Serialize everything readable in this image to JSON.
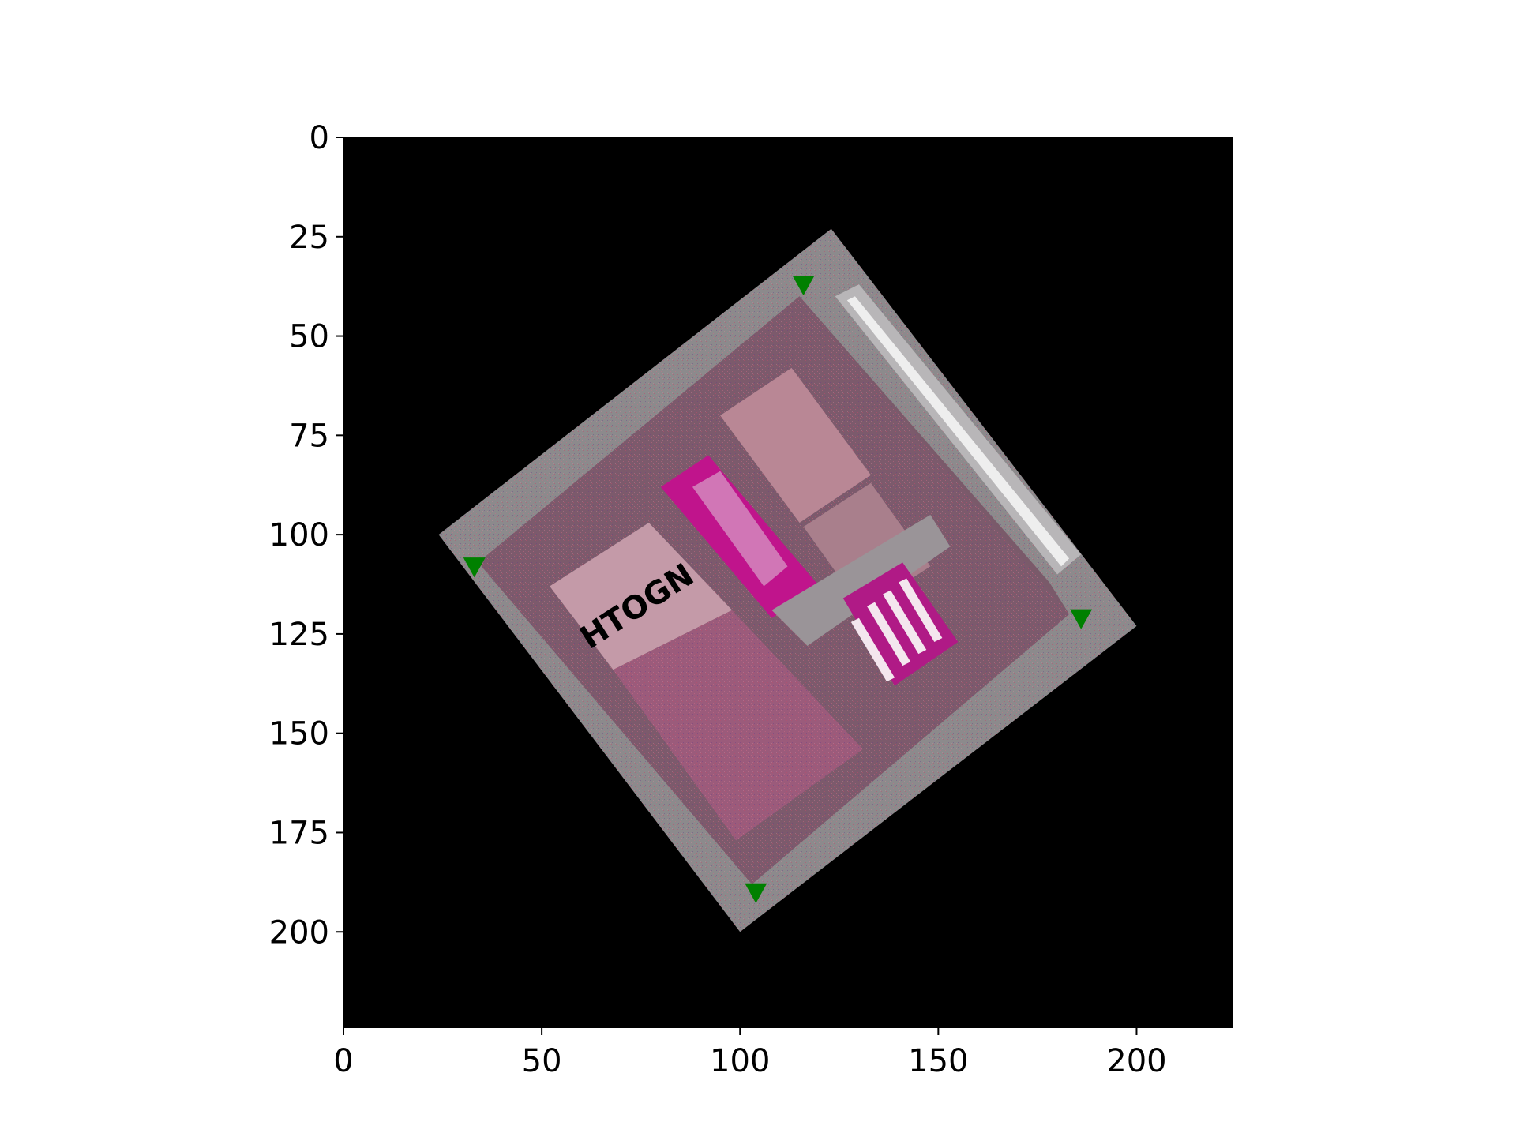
{
  "chart_data": {
    "type": "scatter",
    "title": "",
    "xlabel": "",
    "ylabel": "",
    "xlim": [
      0,
      224
    ],
    "ylim": [
      224,
      0
    ],
    "y_inverted": true,
    "grid": false,
    "legend": null,
    "x_ticks": [
      "0",
      "50",
      "100",
      "150",
      "200"
    ],
    "y_ticks": [
      "0",
      "25",
      "50",
      "75",
      "100",
      "125",
      "150",
      "175",
      "200"
    ],
    "x_tick_values": [
      0,
      50,
      100,
      150,
      200
    ],
    "y_tick_values": [
      0,
      25,
      50,
      75,
      100,
      125,
      150,
      175,
      200
    ],
    "background_image": {
      "description": "rotated box of packaged goods",
      "box_corners": [
        [
          123,
          23
        ],
        [
          200,
          123
        ],
        [
          100,
          200
        ],
        [
          24,
          100
        ]
      ],
      "inner_corners": [
        [
          115,
          40
        ],
        [
          183,
          120
        ],
        [
          103,
          188
        ],
        [
          34,
          107
        ]
      ]
    },
    "series": [
      {
        "marker": "triangle-down",
        "color": "#008000",
        "x": [
          116,
          33,
          186,
          104
        ],
        "y": [
          37,
          108,
          121,
          190
        ]
      }
    ],
    "printed_text": [
      "HTOGN"
    ]
  },
  "colors": {
    "background": "#000000",
    "marker": "#008000",
    "box_edge": "#8c8a8c",
    "box_inner": "#7a5a6a",
    "carton": "#b98795",
    "carton_dark": "#9b5b7b",
    "magenta": "#c0148c"
  }
}
